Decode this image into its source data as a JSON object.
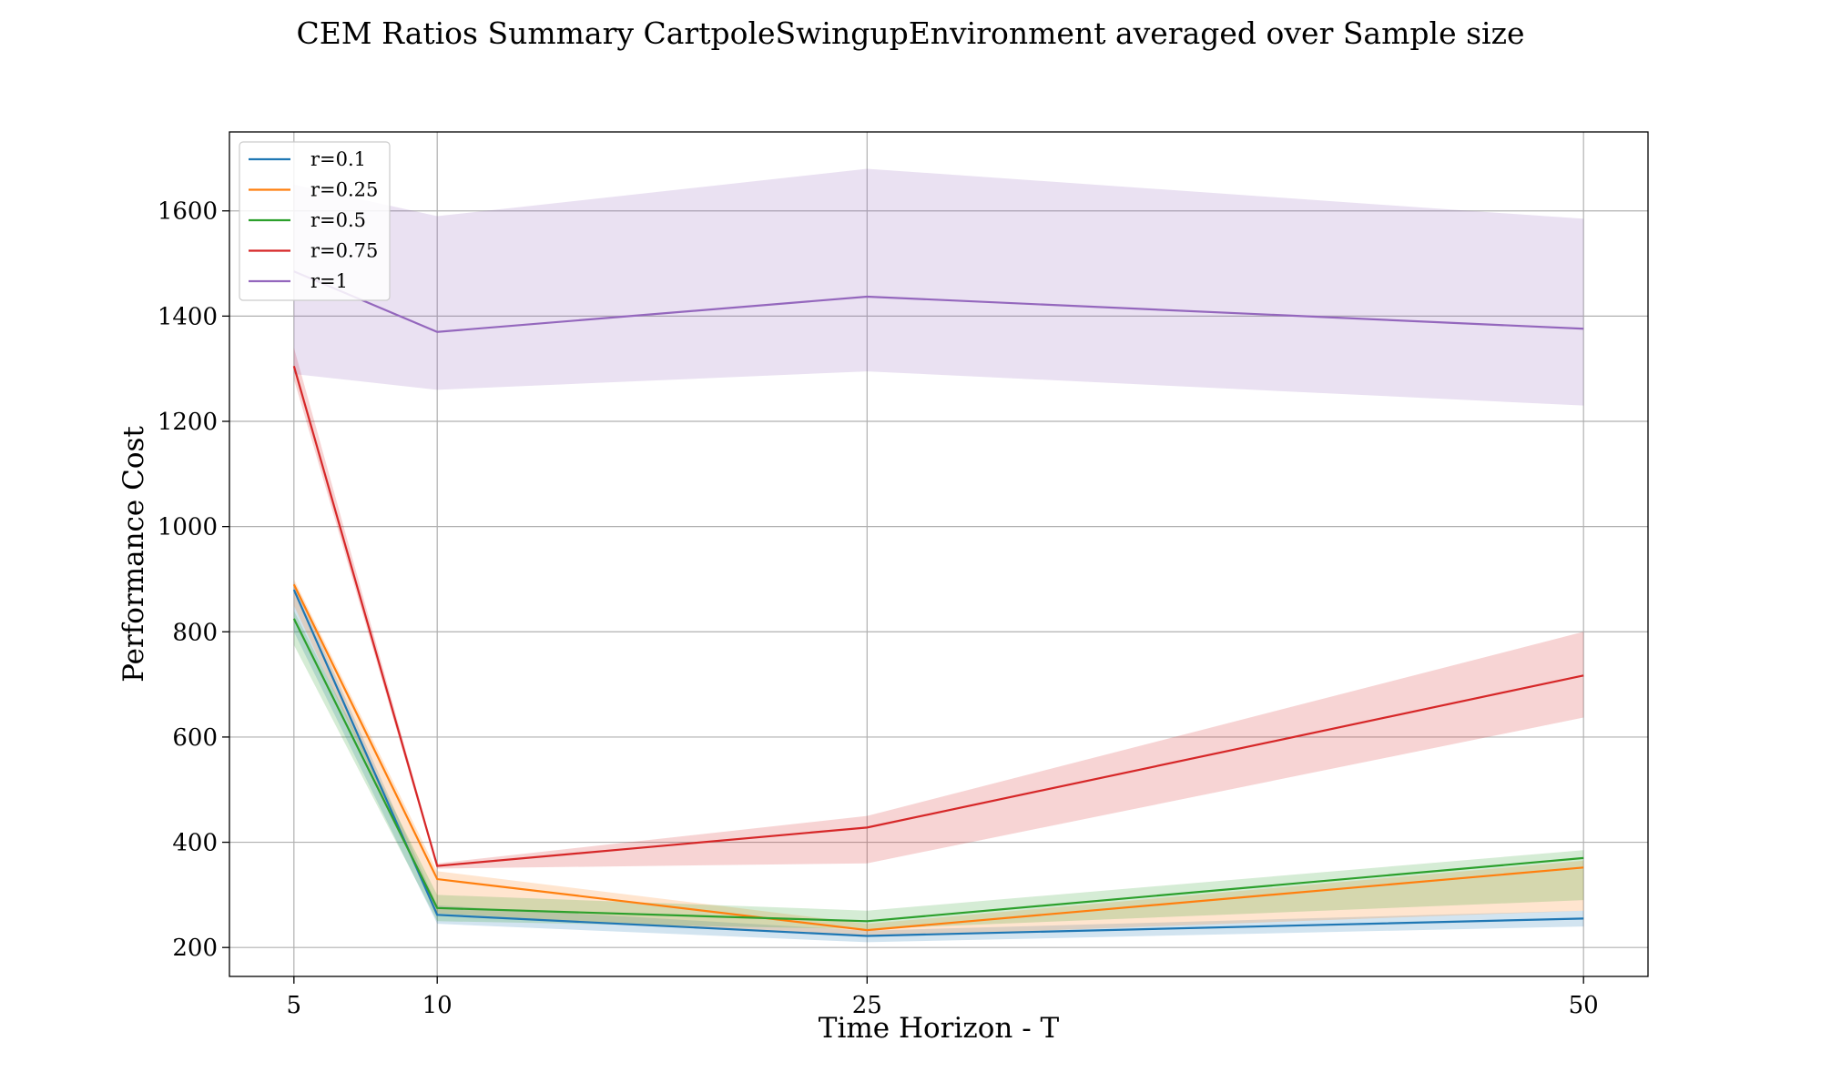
{
  "chart_data": {
    "type": "line",
    "title": "CEM Ratios Summary CartpoleSwingupEnvironment averaged over Sample size",
    "xlabel": "Time Horizon - T",
    "ylabel": "Performance Cost",
    "x": [
      5,
      10,
      25,
      50
    ],
    "xticks": [
      5,
      10,
      25,
      50
    ],
    "xlim": [
      2.75,
      52.25
    ],
    "ylim": [
      145,
      1750
    ],
    "yticks": [
      200,
      400,
      600,
      800,
      1000,
      1200,
      1400,
      1600
    ],
    "grid": true,
    "legend_position": "top-left",
    "series": [
      {
        "name": "r=0.1",
        "color": "#1f77b4",
        "values": [
          880,
          262,
          222,
          255
        ],
        "lower": [
          800,
          245,
          210,
          240
        ],
        "upper": [
          895,
          280,
          232,
          270
        ]
      },
      {
        "name": "r=0.25",
        "color": "#ff7f0e",
        "values": [
          890,
          330,
          233,
          352
        ],
        "lower": [
          850,
          265,
          220,
          270
        ],
        "upper": [
          900,
          345,
          245,
          365
        ]
      },
      {
        "name": "r=0.5",
        "color": "#2ca02c",
        "values": [
          825,
          275,
          250,
          370
        ],
        "lower": [
          775,
          250,
          235,
          290
        ],
        "upper": [
          840,
          300,
          270,
          385
        ]
      },
      {
        "name": "r=0.75",
        "color": "#d62728",
        "values": [
          1305,
          355,
          428,
          717
        ],
        "lower": [
          1280,
          350,
          360,
          637
        ],
        "upper": [
          1340,
          360,
          450,
          800
        ]
      },
      {
        "name": "r=1",
        "color": "#9467bd",
        "values": [
          1485,
          1370,
          1437,
          1376
        ],
        "lower": [
          1290,
          1260,
          1295,
          1230
        ],
        "upper": [
          1650,
          1590,
          1680,
          1585
        ]
      }
    ]
  }
}
